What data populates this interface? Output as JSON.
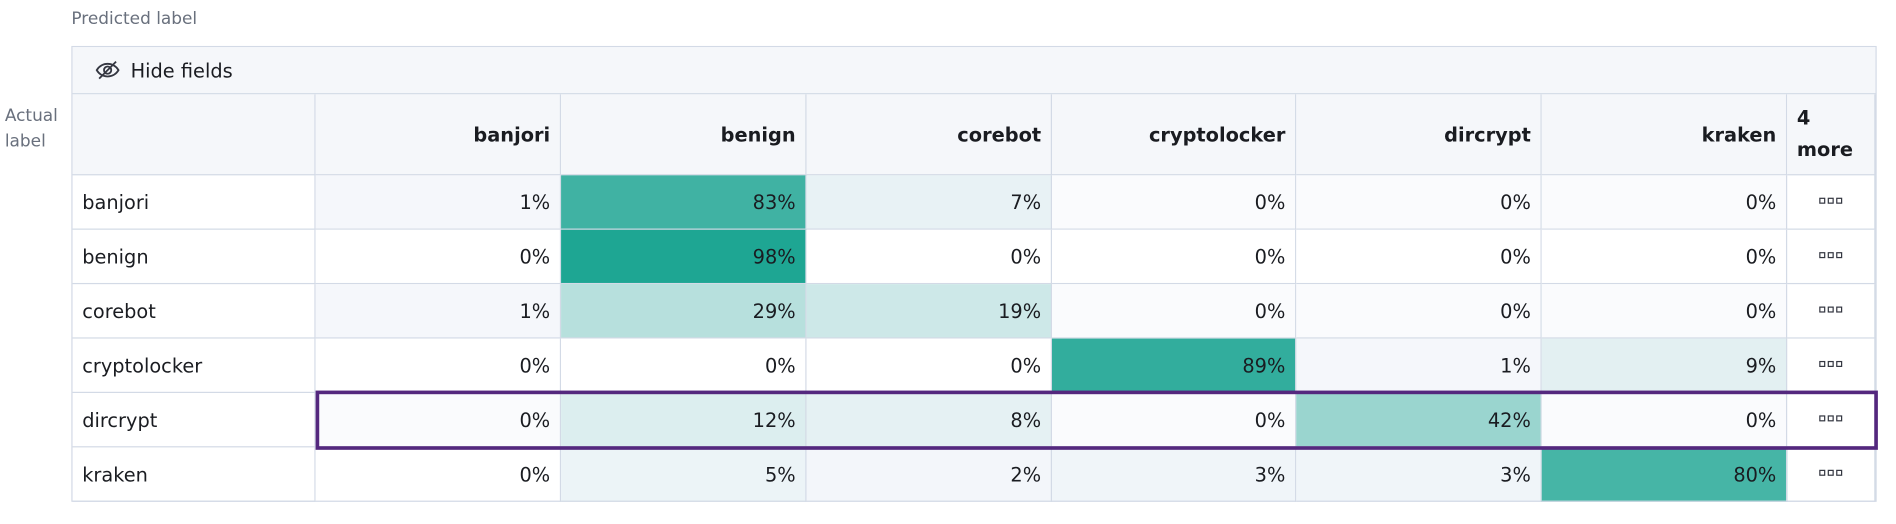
{
  "header": {
    "predicted_label": "Predicted label",
    "actual_label": "Actual label"
  },
  "toolbar": {
    "hide_fields": "Hide fields"
  },
  "table": {
    "columns": [
      "banjori",
      "benign",
      "corebot",
      "cryptolocker",
      "dircrypt",
      "kraken"
    ],
    "more_columns": "4 more",
    "rows": [
      {
        "label": "banjori",
        "cells": [
          "1%",
          "83%",
          "7%",
          "0%",
          "0%",
          "0%"
        ]
      },
      {
        "label": "benign",
        "cells": [
          "0%",
          "98%",
          "0%",
          "0%",
          "0%",
          "0%"
        ]
      },
      {
        "label": "corebot",
        "cells": [
          "1%",
          "29%",
          "19%",
          "0%",
          "0%",
          "0%"
        ]
      },
      {
        "label": "cryptolocker",
        "cells": [
          "0%",
          "0%",
          "0%",
          "89%",
          "1%",
          "9%"
        ]
      },
      {
        "label": "dircrypt",
        "cells": [
          "0%",
          "12%",
          "8%",
          "0%",
          "42%",
          "0%"
        ]
      },
      {
        "label": "kraken",
        "cells": [
          "0%",
          "5%",
          "2%",
          "3%",
          "3%",
          "80%"
        ]
      }
    ]
  }
}
